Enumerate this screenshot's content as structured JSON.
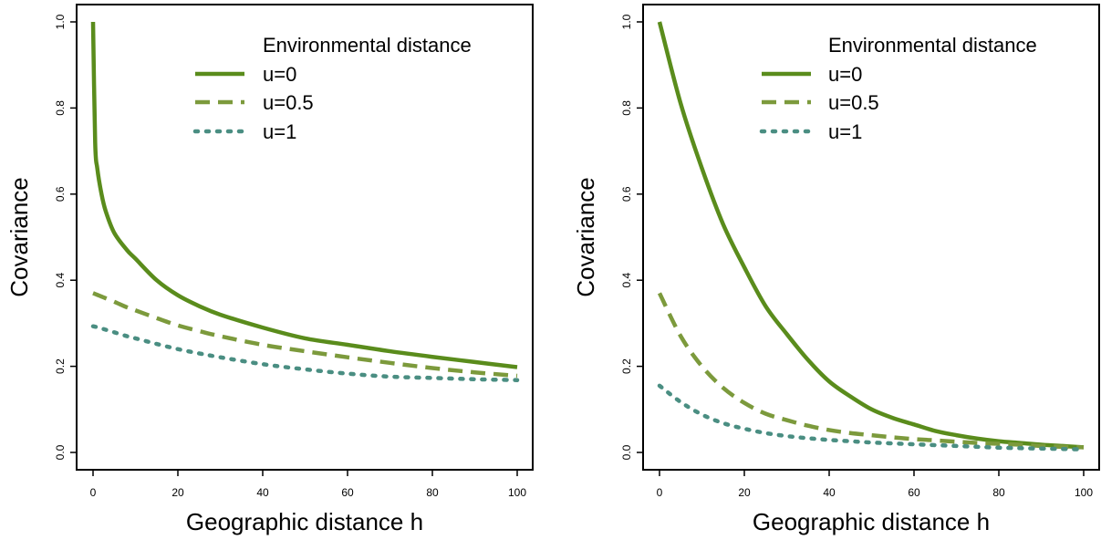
{
  "colors": {
    "solid": "#5a8c1c",
    "dashed": "#7c9a3c",
    "dotted": "#4a8e82",
    "axis": "#000000"
  },
  "chart_data": [
    {
      "type": "line",
      "title": "",
      "xlabel": "Geographic distance h",
      "ylabel": "Covariance",
      "xlim": [
        0,
        100
      ],
      "ylim": [
        0.0,
        1.0
      ],
      "xticks": [
        "0",
        "20",
        "40",
        "60",
        "80",
        "100"
      ],
      "yticks": [
        "0.0",
        "0.2",
        "0.4",
        "0.6",
        "0.8",
        "1.0"
      ],
      "grid": false,
      "legend": {
        "title": "Environmental distance",
        "position": "top-right",
        "entries": [
          "u=0",
          "u=0.5",
          "u=1"
        ]
      },
      "x": [
        0,
        0.5,
        1,
        2,
        3,
        5,
        8,
        10,
        15,
        20,
        25,
        30,
        40,
        50,
        60,
        70,
        80,
        90,
        100
      ],
      "series": [
        {
          "name": "u=0",
          "style": "solid",
          "values": [
            1.0,
            0.72,
            0.66,
            0.6,
            0.56,
            0.51,
            0.47,
            0.45,
            0.4,
            0.365,
            0.34,
            0.32,
            0.29,
            0.265,
            0.25,
            0.235,
            0.222,
            0.21,
            0.198
          ]
        },
        {
          "name": "u=0.5",
          "style": "dashed",
          "values": [
            0.37,
            0.368,
            0.366,
            0.362,
            0.358,
            0.35,
            0.337,
            0.33,
            0.312,
            0.295,
            0.282,
            0.27,
            0.25,
            0.235,
            0.221,
            0.208,
            0.196,
            0.186,
            0.178
          ]
        },
        {
          "name": "u=1",
          "style": "dotted",
          "values": [
            0.293,
            0.292,
            0.291,
            0.288,
            0.285,
            0.279,
            0.27,
            0.265,
            0.252,
            0.24,
            0.23,
            0.221,
            0.205,
            0.193,
            0.183,
            0.176,
            0.173,
            0.17,
            0.168
          ]
        }
      ]
    },
    {
      "type": "line",
      "title": "",
      "xlabel": "Geographic distance h",
      "ylabel": "Covariance",
      "xlim": [
        0,
        100
      ],
      "ylim": [
        0.0,
        1.0
      ],
      "xticks": [
        "0",
        "20",
        "40",
        "60",
        "80",
        "100"
      ],
      "yticks": [
        "0.0",
        "0.2",
        "0.4",
        "0.6",
        "0.8",
        "1.0"
      ],
      "grid": false,
      "legend": {
        "title": "Environmental distance",
        "position": "top-right",
        "entries": [
          "u=0",
          "u=0.5",
          "u=1"
        ]
      },
      "x": [
        0,
        5,
        10,
        15,
        20,
        25,
        30,
        35,
        40,
        45,
        50,
        55,
        60,
        65,
        70,
        75,
        80,
        85,
        90,
        95,
        100
      ],
      "series": [
        {
          "name": "u=0",
          "style": "solid",
          "values": [
            1.0,
            0.81,
            0.66,
            0.53,
            0.43,
            0.34,
            0.275,
            0.215,
            0.165,
            0.13,
            0.1,
            0.08,
            0.065,
            0.05,
            0.04,
            0.032,
            0.026,
            0.022,
            0.018,
            0.015,
            0.012
          ]
        },
        {
          "name": "u=0.5",
          "style": "dashed",
          "values": [
            0.37,
            0.27,
            0.2,
            0.15,
            0.115,
            0.09,
            0.075,
            0.062,
            0.052,
            0.045,
            0.04,
            0.035,
            0.031,
            0.028,
            0.025,
            0.022,
            0.02,
            0.018,
            0.015,
            0.013,
            0.012
          ]
        },
        {
          "name": "u=1",
          "style": "dotted",
          "values": [
            0.155,
            0.117,
            0.088,
            0.068,
            0.055,
            0.045,
            0.038,
            0.033,
            0.029,
            0.026,
            0.023,
            0.021,
            0.019,
            0.017,
            0.015,
            0.013,
            0.011,
            0.01,
            0.009,
            0.008,
            0.007
          ]
        }
      ]
    }
  ]
}
